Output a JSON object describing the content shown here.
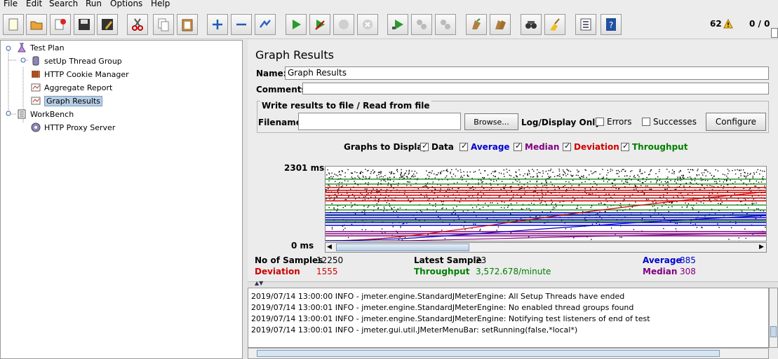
{
  "menu": [
    "File",
    "Edit",
    "Search",
    "Run",
    "Options",
    "Help"
  ],
  "toolbar": {
    "icons": [
      "new-icon",
      "open-icon",
      "close-icon",
      "save-icon",
      "save-as-icon",
      "cut-icon",
      "copy-icon",
      "paste-icon",
      "expand-icon",
      "collapse-icon",
      "toggle-icon",
      "start-icon",
      "start-no-pause-icon",
      "stop-icon",
      "shutdown-icon",
      "remote-start-icon",
      "remote-stop-icon",
      "remote-shutdown-icon",
      "clear-icon",
      "clear-all-icon",
      "search-icon",
      "reset-search-icon",
      "function-helper-icon",
      "help-icon"
    ],
    "warnings": "62",
    "threads": "0 / 0"
  },
  "tree": [
    {
      "label": "Test Plan",
      "icon": "test-plan-icon"
    },
    {
      "label": "setUp Thread Group",
      "icon": "thread-group-icon"
    },
    {
      "label": "HTTP Cookie Manager",
      "icon": "cookie-manager-icon"
    },
    {
      "label": "Aggregate Report",
      "icon": "report-icon"
    },
    {
      "label": "Graph Results",
      "icon": "graph-icon"
    },
    {
      "label": "WorkBench",
      "icon": "workbench-icon"
    },
    {
      "label": "HTTP Proxy Server",
      "icon": "proxy-icon"
    }
  ],
  "panel": {
    "title": "Graph Results",
    "name_label": "Name:",
    "name_value": "Graph Results",
    "comments_label": "Comments:",
    "comments_value": "",
    "file_section_title": "Write results to file / Read from file",
    "filename_label": "Filename",
    "filename_value": "",
    "browse": "Browse...",
    "log_display": "Log/Display Only:",
    "errors": "Errors",
    "successes": "Successes",
    "configure": "Configure",
    "graphs_to_display": "Graphs to Display",
    "options": [
      {
        "label": "Data",
        "color": "#000000",
        "checked": true
      },
      {
        "label": "Average",
        "color": "#0000cc",
        "checked": true
      },
      {
        "label": "Median",
        "color": "#800080",
        "checked": true
      },
      {
        "label": "Deviation",
        "color": "#cc0000",
        "checked": true
      },
      {
        "label": "Throughput",
        "color": "#008000",
        "checked": true
      }
    ],
    "y_max": "2301  ms",
    "y_min": "0  ms"
  },
  "stats": {
    "samples_label": "No of Samples",
    "samples": "12250",
    "latest_label": "Latest Sample",
    "latest": "23",
    "average_label": "Average",
    "average": "885",
    "deviation_label": "Deviation",
    "deviation": "1555",
    "throughput_label": "Throughput",
    "throughput": "3,572.678/minute",
    "median_label": "Median",
    "median": "308"
  },
  "log": [
    "2019/07/14 13:00:00 INFO  - jmeter.engine.StandardJMeterEngine: All Setup Threads have ended",
    "2019/07/14 13:00:01 INFO  - jmeter.engine.StandardJMeterEngine: No enabled thread groups found",
    "2019/07/14 13:00:01 INFO  - jmeter.engine.StandardJMeterEngine: Notifying test listeners of end of test",
    "2019/07/14 13:00:01 INFO  - jmeter.gui.util.JMeterMenuBar: setRunning(false,*local*)"
  ]
}
